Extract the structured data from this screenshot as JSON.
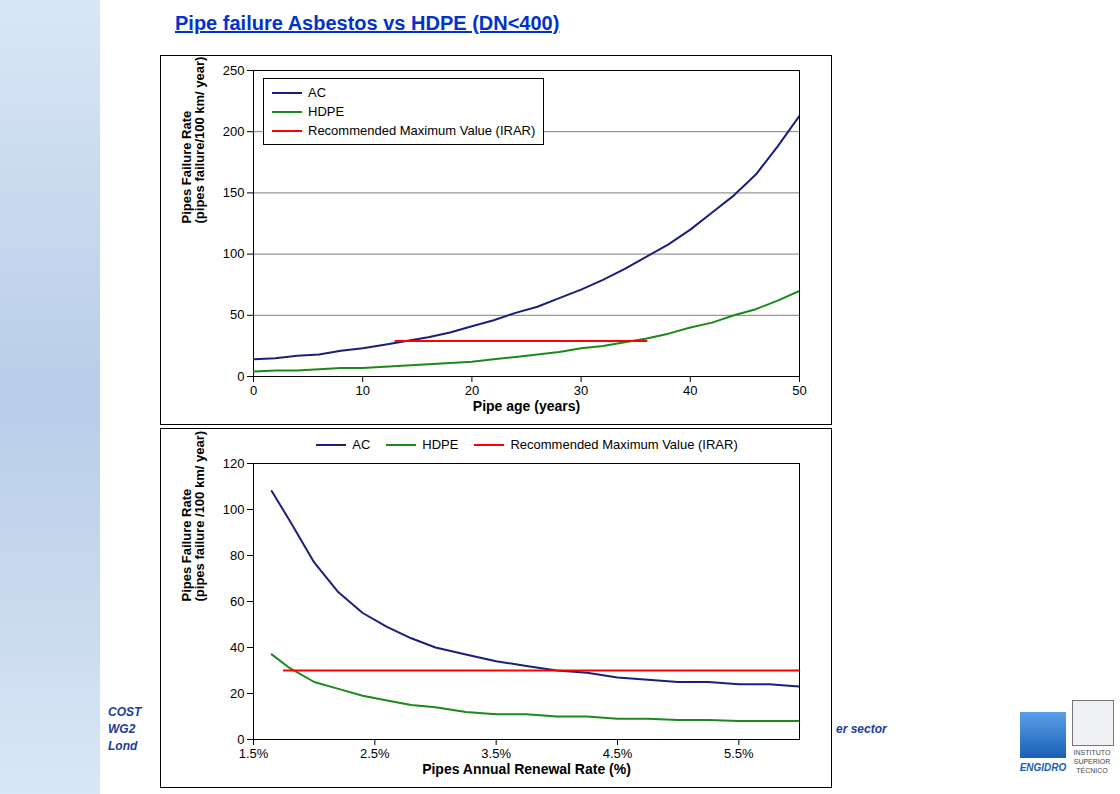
{
  "title": "Pipe failure Asbestos vs HDPE (DN<400)",
  "footer": [
    "COST",
    "WG2",
    "Lond",
    "er sector"
  ],
  "logos": [
    "ENGIDRO",
    "INSTITUTO SUPERIOR TÉCNICO"
  ],
  "chart_data": [
    {
      "type": "line",
      "xlabel": "Pipe age (years)",
      "ylabel": [
        "Pipes Failure Rate",
        "(pipes failure/100 km/ year)"
      ],
      "xlim": [
        0,
        50
      ],
      "xticks": [
        0,
        10,
        20,
        30,
        40,
        50
      ],
      "ylim": [
        0,
        250
      ],
      "yticks": [
        0,
        50,
        100,
        150,
        200,
        250
      ],
      "grid": true,
      "legend": "top-left",
      "series": [
        {
          "name": "AC",
          "color": "#1b1f7a",
          "x": [
            0,
            2,
            4,
            6,
            8,
            10,
            12,
            14,
            16,
            18,
            20,
            22,
            24,
            26,
            28,
            30,
            32,
            34,
            36,
            38,
            40,
            42,
            44,
            46,
            48,
            50
          ],
          "values": [
            14,
            15,
            17,
            18,
            21,
            23,
            26,
            29,
            32,
            36,
            41,
            46,
            52,
            57,
            64,
            71,
            79,
            88,
            98,
            108,
            120,
            134,
            148,
            165,
            188,
            213
          ]
        },
        {
          "name": "HDPE",
          "color": "#1a8a1a",
          "x": [
            0,
            2,
            4,
            6,
            8,
            10,
            12,
            14,
            16,
            18,
            20,
            22,
            24,
            26,
            28,
            30,
            32,
            34,
            36,
            38,
            40,
            42,
            44,
            46,
            48,
            50
          ],
          "values": [
            4,
            5,
            5,
            6,
            7,
            7,
            8,
            9,
            10,
            11,
            12,
            14,
            16,
            18,
            20,
            23,
            25,
            28,
            31,
            35,
            40,
            44,
            50,
            55,
            62,
            70
          ]
        },
        {
          "name": "Recommended Maximum Value (IRAR)",
          "color": "#ff0000",
          "x": [
            13,
            36
          ],
          "values": [
            29,
            29
          ]
        }
      ]
    },
    {
      "type": "line",
      "xlabel": "Pipes Annual Renewal Rate (%)",
      "ylabel": [
        "Pipes Failure Rate",
        "(pipes failure /100 km/ year)"
      ],
      "xlim": [
        1.5,
        6.0
      ],
      "xticks": [
        {
          "value": 1.5,
          "label": "1.5%"
        },
        {
          "value": 2.5,
          "label": "2.5%"
        },
        {
          "value": 3.5,
          "label": "3.5%"
        },
        {
          "value": 4.5,
          "label": "4.5%"
        },
        {
          "value": 5.5,
          "label": "5.5%"
        }
      ],
      "ylim": [
        0,
        120
      ],
      "yticks": [
        0,
        20,
        40,
        60,
        80,
        100,
        120
      ],
      "grid": false,
      "legend": "top",
      "series": [
        {
          "name": "AC",
          "color": "#1b1f7a",
          "x": [
            1.65,
            1.8,
            2.0,
            2.2,
            2.4,
            2.6,
            2.8,
            3.0,
            3.25,
            3.5,
            3.75,
            4.0,
            4.25,
            4.5,
            4.75,
            5.0,
            5.25,
            5.5,
            5.75,
            6.0
          ],
          "values": [
            108,
            95,
            77,
            64,
            55,
            49,
            44,
            40,
            37,
            34,
            32,
            30,
            29,
            27,
            26,
            25,
            25,
            24,
            24,
            23
          ]
        },
        {
          "name": "HDPE",
          "color": "#1a8a1a",
          "x": [
            1.65,
            1.8,
            2.0,
            2.2,
            2.4,
            2.6,
            2.8,
            3.0,
            3.25,
            3.5,
            3.75,
            4.0,
            4.25,
            4.5,
            4.75,
            5.0,
            5.25,
            5.5,
            5.75,
            6.0
          ],
          "values": [
            37,
            31,
            25,
            22,
            19,
            17,
            15,
            14,
            12,
            11,
            11,
            10,
            10,
            9,
            9,
            8.5,
            8.5,
            8,
            8,
            8
          ]
        },
        {
          "name": "Recommended Maximum Value (IRAR)",
          "color": "#ff0000",
          "x": [
            1.75,
            6.0
          ],
          "values": [
            30,
            30
          ]
        }
      ]
    }
  ]
}
